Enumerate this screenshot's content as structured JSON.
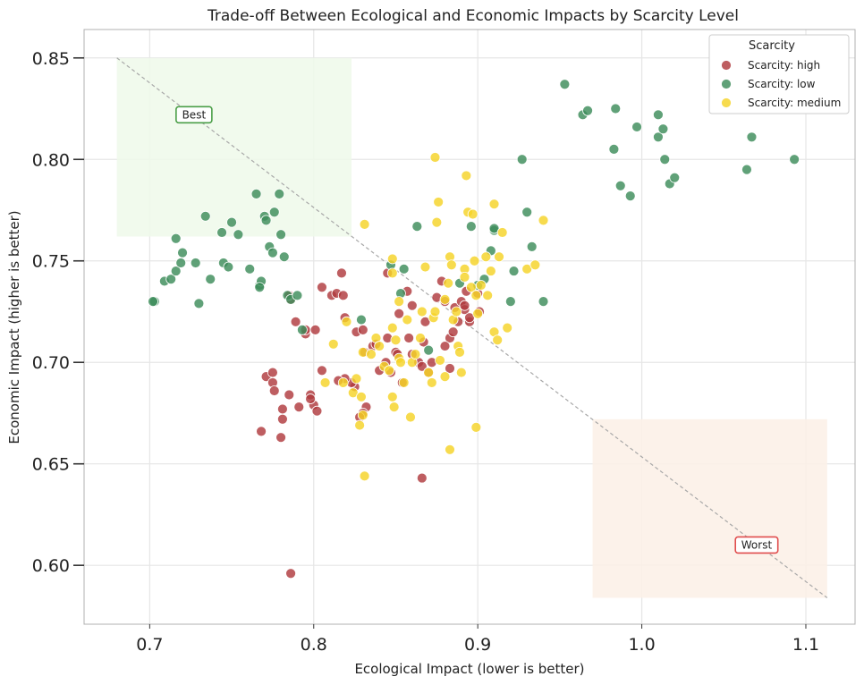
{
  "chart_data": {
    "type": "scatter",
    "title": "Trade-off Between Ecological and Economic Impacts by Scarcity Level",
    "xlabel": "Ecological Impact (lower is better)",
    "ylabel": "Economic Impact (higher is better)",
    "xlim": [
      0.66,
      1.13
    ],
    "ylim": [
      0.571,
      0.864
    ],
    "xticks": [
      0.7,
      0.8,
      0.9,
      1.0,
      1.1
    ],
    "xtick_labels": [
      "0.7",
      "0.8",
      "0.9",
      "1.0",
      "1.1"
    ],
    "yticks": [
      0.6,
      0.65,
      0.7,
      0.75,
      0.8,
      0.85
    ],
    "ytick_labels": [
      "0.60",
      "0.65",
      "0.70",
      "0.75",
      "0.80",
      "0.85"
    ],
    "grid": true,
    "legend": {
      "title": "Scarcity",
      "placement": "top-right"
    },
    "colors": {
      "high": "#b03a3e",
      "low": "#3d8c5a",
      "medium": "#f5d327"
    },
    "regions": [
      {
        "label": "best",
        "x": [
          0.68,
          0.823
        ],
        "y": [
          0.762,
          0.85
        ],
        "color": "#eef9ea"
      },
      {
        "label": "worst",
        "x": [
          0.97,
          1.113
        ],
        "y": [
          0.584,
          0.672
        ],
        "color": "#fbf0e6"
      }
    ],
    "diagonal": {
      "x": [
        0.68,
        1.113
      ],
      "y": [
        0.85,
        0.584
      ]
    },
    "annotations": [
      {
        "text": "Best",
        "x": 0.727,
        "y": 0.822,
        "border": "#4a9e47"
      },
      {
        "text": "Worst",
        "x": 1.07,
        "y": 0.61,
        "border": "#e04d4d"
      }
    ],
    "series": [
      {
        "name": "Scarcity: high",
        "key": "high",
        "points": [
          [
            0.786,
            0.596
          ],
          [
            0.866,
            0.643
          ],
          [
            0.768,
            0.666
          ],
          [
            0.78,
            0.663
          ],
          [
            0.781,
            0.672
          ],
          [
            0.771,
            0.693
          ],
          [
            0.775,
            0.69
          ],
          [
            0.776,
            0.686
          ],
          [
            0.775,
            0.695
          ],
          [
            0.785,
            0.684
          ],
          [
            0.791,
            0.678
          ],
          [
            0.781,
            0.677
          ],
          [
            0.798,
            0.684
          ],
          [
            0.8,
            0.679
          ],
          [
            0.802,
            0.676
          ],
          [
            0.798,
            0.682
          ],
          [
            0.805,
            0.696
          ],
          [
            0.795,
            0.714
          ],
          [
            0.795,
            0.716
          ],
          [
            0.801,
            0.716
          ],
          [
            0.789,
            0.72
          ],
          [
            0.786,
            0.731
          ],
          [
            0.785,
            0.733
          ],
          [
            0.805,
            0.737
          ],
          [
            0.811,
            0.733
          ],
          [
            0.814,
            0.734
          ],
          [
            0.818,
            0.733
          ],
          [
            0.817,
            0.744
          ],
          [
            0.819,
            0.722
          ],
          [
            0.826,
            0.715
          ],
          [
            0.83,
            0.716
          ],
          [
            0.831,
            0.705
          ],
          [
            0.836,
            0.708
          ],
          [
            0.838,
            0.709
          ],
          [
            0.845,
            0.712
          ],
          [
            0.84,
            0.696
          ],
          [
            0.844,
            0.7
          ],
          [
            0.847,
            0.695
          ],
          [
            0.85,
            0.705
          ],
          [
            0.851,
            0.704
          ],
          [
            0.852,
            0.724
          ],
          [
            0.857,
            0.735
          ],
          [
            0.86,
            0.728
          ],
          [
            0.864,
            0.7
          ],
          [
            0.866,
            0.698
          ],
          [
            0.867,
            0.71
          ],
          [
            0.868,
            0.72
          ],
          [
            0.87,
            0.695
          ],
          [
            0.872,
            0.7
          ],
          [
            0.875,
            0.732
          ],
          [
            0.878,
            0.74
          ],
          [
            0.88,
            0.73
          ],
          [
            0.883,
            0.712
          ],
          [
            0.885,
            0.715
          ],
          [
            0.886,
            0.727
          ],
          [
            0.888,
            0.72
          ],
          [
            0.89,
            0.73
          ],
          [
            0.892,
            0.726
          ],
          [
            0.893,
            0.735
          ],
          [
            0.895,
            0.72
          ],
          [
            0.895,
            0.722
          ],
          [
            0.9,
            0.734
          ],
          [
            0.901,
            0.725
          ],
          [
            0.883,
            0.697
          ],
          [
            0.88,
            0.708
          ],
          [
            0.86,
            0.704
          ],
          [
            0.854,
            0.69
          ],
          [
            0.832,
            0.678
          ],
          [
            0.83,
            0.675
          ],
          [
            0.828,
            0.673
          ],
          [
            0.825,
            0.688
          ],
          [
            0.823,
            0.69
          ],
          [
            0.819,
            0.692
          ],
          [
            0.815,
            0.691
          ],
          [
            0.845,
            0.744
          ],
          [
            0.892,
            0.728
          ],
          [
            0.858,
            0.712
          ]
        ]
      },
      {
        "name": "Scarcity: low",
        "key": "low",
        "points": [
          [
            0.703,
            0.73
          ],
          [
            0.702,
            0.73
          ],
          [
            0.709,
            0.74
          ],
          [
            0.713,
            0.741
          ],
          [
            0.716,
            0.745
          ],
          [
            0.719,
            0.749
          ],
          [
            0.72,
            0.754
          ],
          [
            0.716,
            0.761
          ],
          [
            0.728,
            0.749
          ],
          [
            0.73,
            0.729
          ],
          [
            0.734,
            0.772
          ],
          [
            0.737,
            0.741
          ],
          [
            0.744,
            0.764
          ],
          [
            0.745,
            0.749
          ],
          [
            0.748,
            0.747
          ],
          [
            0.75,
            0.769
          ],
          [
            0.754,
            0.763
          ],
          [
            0.761,
            0.746
          ],
          [
            0.765,
            0.783
          ],
          [
            0.767,
            0.738
          ],
          [
            0.768,
            0.74
          ],
          [
            0.767,
            0.737
          ],
          [
            0.77,
            0.772
          ],
          [
            0.771,
            0.77
          ],
          [
            0.773,
            0.757
          ],
          [
            0.775,
            0.754
          ],
          [
            0.776,
            0.774
          ],
          [
            0.779,
            0.783
          ],
          [
            0.78,
            0.763
          ],
          [
            0.782,
            0.752
          ],
          [
            0.784,
            0.733
          ],
          [
            0.786,
            0.731
          ],
          [
            0.79,
            0.733
          ],
          [
            0.793,
            0.716
          ],
          [
            0.829,
            0.721
          ],
          [
            0.847,
            0.748
          ],
          [
            0.855,
            0.746
          ],
          [
            0.853,
            0.734
          ],
          [
            0.863,
            0.767
          ],
          [
            0.87,
            0.706
          ],
          [
            0.889,
            0.739
          ],
          [
            0.896,
            0.767
          ],
          [
            0.9,
            0.738
          ],
          [
            0.908,
            0.755
          ],
          [
            0.91,
            0.765
          ],
          [
            0.91,
            0.766
          ],
          [
            0.92,
            0.73
          ],
          [
            0.922,
            0.745
          ],
          [
            0.927,
            0.8
          ],
          [
            0.93,
            0.774
          ],
          [
            0.933,
            0.757
          ],
          [
            0.94,
            0.73
          ],
          [
            0.953,
            0.837
          ],
          [
            0.964,
            0.822
          ],
          [
            0.967,
            0.824
          ],
          [
            0.984,
            0.825
          ],
          [
            0.983,
            0.805
          ],
          [
            0.987,
            0.787
          ],
          [
            0.993,
            0.782
          ],
          [
            0.997,
            0.816
          ],
          [
            1.01,
            0.811
          ],
          [
            1.013,
            0.815
          ],
          [
            1.014,
            0.8
          ],
          [
            1.01,
            0.822
          ],
          [
            1.017,
            0.788
          ],
          [
            1.02,
            0.791
          ],
          [
            1.064,
            0.795
          ],
          [
            1.067,
            0.811
          ],
          [
            1.093,
            0.8
          ],
          [
            0.904,
            0.741
          ]
        ]
      },
      {
        "name": "Scarcity: medium",
        "key": "medium",
        "points": [
          [
            0.831,
            0.644
          ],
          [
            0.883,
            0.657
          ],
          [
            0.899,
            0.668
          ],
          [
            0.859,
            0.673
          ],
          [
            0.828,
            0.669
          ],
          [
            0.83,
            0.674
          ],
          [
            0.824,
            0.685
          ],
          [
            0.826,
            0.692
          ],
          [
            0.829,
            0.683
          ],
          [
            0.818,
            0.69
          ],
          [
            0.807,
            0.69
          ],
          [
            0.812,
            0.709
          ],
          [
            0.82,
            0.72
          ],
          [
            0.83,
            0.705
          ],
          [
            0.835,
            0.704
          ],
          [
            0.838,
            0.712
          ],
          [
            0.84,
            0.708
          ],
          [
            0.843,
            0.698
          ],
          [
            0.846,
            0.696
          ],
          [
            0.848,
            0.683
          ],
          [
            0.849,
            0.678
          ],
          [
            0.848,
            0.717
          ],
          [
            0.85,
            0.711
          ],
          [
            0.852,
            0.702
          ],
          [
            0.853,
            0.7
          ],
          [
            0.855,
            0.69
          ],
          [
            0.857,
            0.721
          ],
          [
            0.86,
            0.7
          ],
          [
            0.862,
            0.704
          ],
          [
            0.865,
            0.712
          ],
          [
            0.866,
            0.725
          ],
          [
            0.868,
            0.747
          ],
          [
            0.87,
            0.695
          ],
          [
            0.872,
            0.69
          ],
          [
            0.873,
            0.722
          ],
          [
            0.874,
            0.725
          ],
          [
            0.875,
            0.769
          ],
          [
            0.876,
            0.779
          ],
          [
            0.877,
            0.701
          ],
          [
            0.88,
            0.731
          ],
          [
            0.882,
            0.739
          ],
          [
            0.883,
            0.752
          ],
          [
            0.884,
            0.748
          ],
          [
            0.885,
            0.721
          ],
          [
            0.887,
            0.725
          ],
          [
            0.888,
            0.708
          ],
          [
            0.889,
            0.705
          ],
          [
            0.89,
            0.695
          ],
          [
            0.892,
            0.746
          ],
          [
            0.892,
            0.742
          ],
          [
            0.893,
            0.792
          ],
          [
            0.894,
            0.774
          ],
          [
            0.896,
            0.737
          ],
          [
            0.897,
            0.773
          ],
          [
            0.898,
            0.75
          ],
          [
            0.899,
            0.733
          ],
          [
            0.9,
            0.724
          ],
          [
            0.902,
            0.738
          ],
          [
            0.905,
            0.752
          ],
          [
            0.906,
            0.733
          ],
          [
            0.908,
            0.745
          ],
          [
            0.91,
            0.778
          ],
          [
            0.91,
            0.715
          ],
          [
            0.912,
            0.711
          ],
          [
            0.913,
            0.752
          ],
          [
            0.915,
            0.764
          ],
          [
            0.918,
            0.717
          ],
          [
            0.93,
            0.746
          ],
          [
            0.935,
            0.748
          ],
          [
            0.94,
            0.77
          ],
          [
            0.874,
            0.801
          ],
          [
            0.848,
            0.751
          ],
          [
            0.831,
            0.768
          ],
          [
            0.848,
            0.744
          ],
          [
            0.88,
            0.693
          ],
          [
            0.852,
            0.73
          ]
        ]
      }
    ]
  }
}
